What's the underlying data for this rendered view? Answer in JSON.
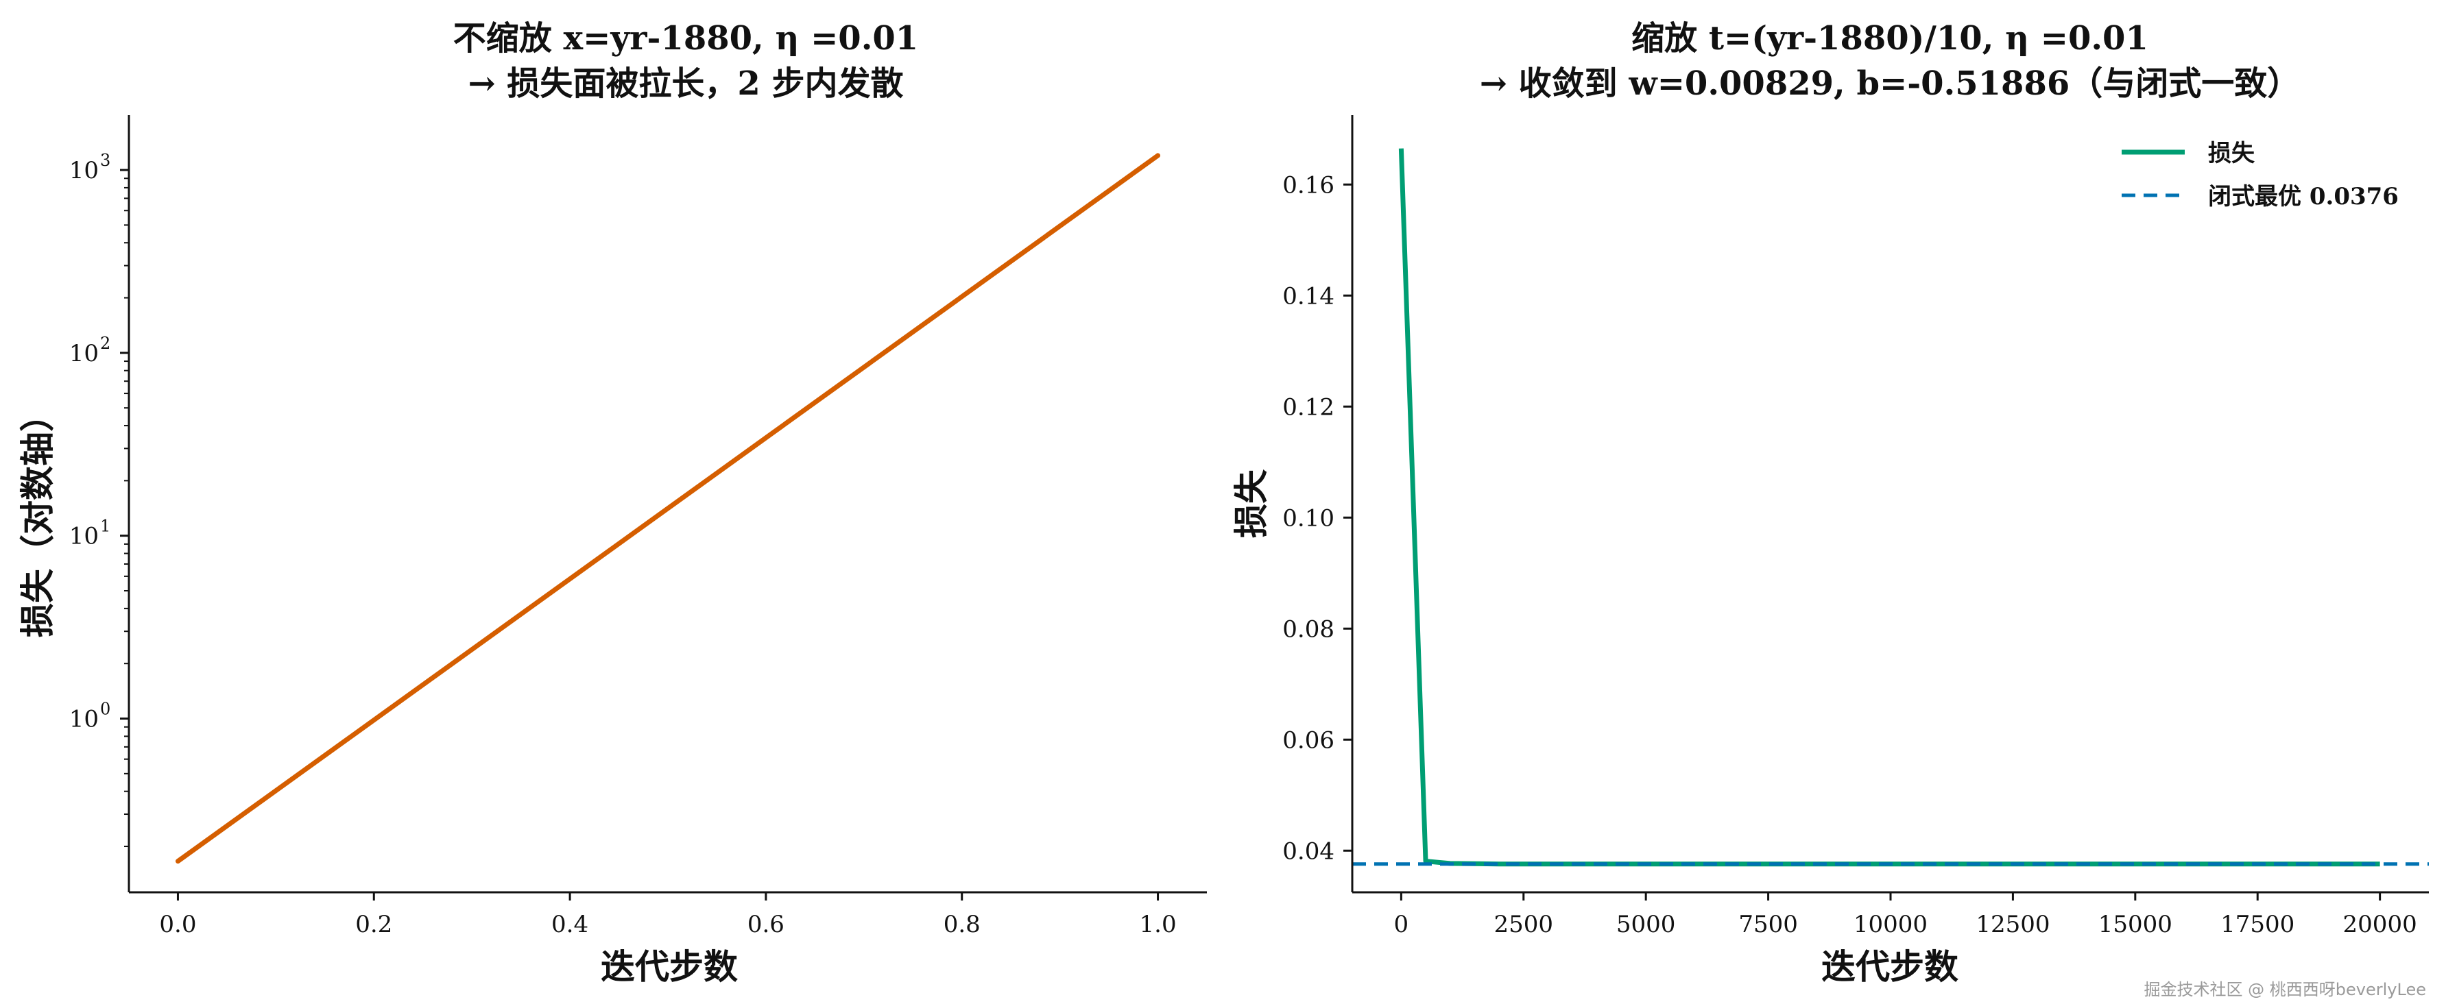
{
  "watermark": "掘金技术社区 @ 桃西西呀beverlyLee",
  "colors": {
    "orange": "#D55E00",
    "green": "#009E73",
    "blue": "#0072B2"
  },
  "chart_data": [
    {
      "type": "line",
      "title_line1": "不缩放 x=yr-1880,  η =0.01",
      "title_line2": "→ 损失面被拉长，2 步内发散",
      "xlabel": "迭代步数",
      "ylabel": "损失（对数轴）",
      "yscale": "log",
      "xlim": [
        -0.05,
        1.05
      ],
      "ylim_log10": [
        -0.95,
        3.3
      ],
      "x_ticks": [
        "0.0",
        "0.2",
        "0.4",
        "0.6",
        "0.8",
        "1.0"
      ],
      "x_tick_values": [
        0,
        0.2,
        0.4,
        0.6,
        0.8,
        1.0
      ],
      "y_ticks": [
        {
          "base": "10",
          "exp": "0",
          "value": 0
        },
        {
          "base": "10",
          "exp": "1",
          "value": 1
        },
        {
          "base": "10",
          "exp": "2",
          "value": 2
        },
        {
          "base": "10",
          "exp": "3",
          "value": 3
        }
      ],
      "series": [
        {
          "x": [
            0,
            1
          ],
          "y": [
            0.166,
            1200
          ],
          "color": "#D55E00"
        }
      ]
    },
    {
      "type": "line",
      "title_line1": "缩放 t=(yr-1880)/10,  η =0.01",
      "title_line2": "→ 收敛到 w=0.00829, b=-0.51886（与闭式一致）",
      "xlabel": "迭代步数",
      "ylabel": "损失",
      "xlim": [
        -1000,
        21000
      ],
      "ylim": [
        0.0325,
        0.1725
      ],
      "x_ticks": [
        "0",
        "2500",
        "5000",
        "7500",
        "10000",
        "12500",
        "15000",
        "17500",
        "20000"
      ],
      "x_tick_values": [
        0,
        2500,
        5000,
        7500,
        10000,
        12500,
        15000,
        17500,
        20000
      ],
      "y_ticks": [
        "0.04",
        "0.06",
        "0.08",
        "0.10",
        "0.12",
        "0.14",
        "0.16"
      ],
      "y_tick_values": [
        0.04,
        0.06,
        0.08,
        0.1,
        0.12,
        0.14,
        0.16
      ],
      "series": [
        {
          "name": "损失",
          "x": [
            0,
            500,
            1000,
            2000,
            5000,
            10000,
            15000,
            20000
          ],
          "y": [
            0.1665,
            0.0381,
            0.0377,
            0.0376,
            0.0376,
            0.0376,
            0.0376,
            0.0376
          ],
          "color": "#009E73"
        }
      ],
      "hline": {
        "name": "闭式最优 0.0376",
        "y": 0.0376,
        "color": "#0072B2",
        "style": "dashed"
      },
      "legend_position": "top-right"
    }
  ]
}
